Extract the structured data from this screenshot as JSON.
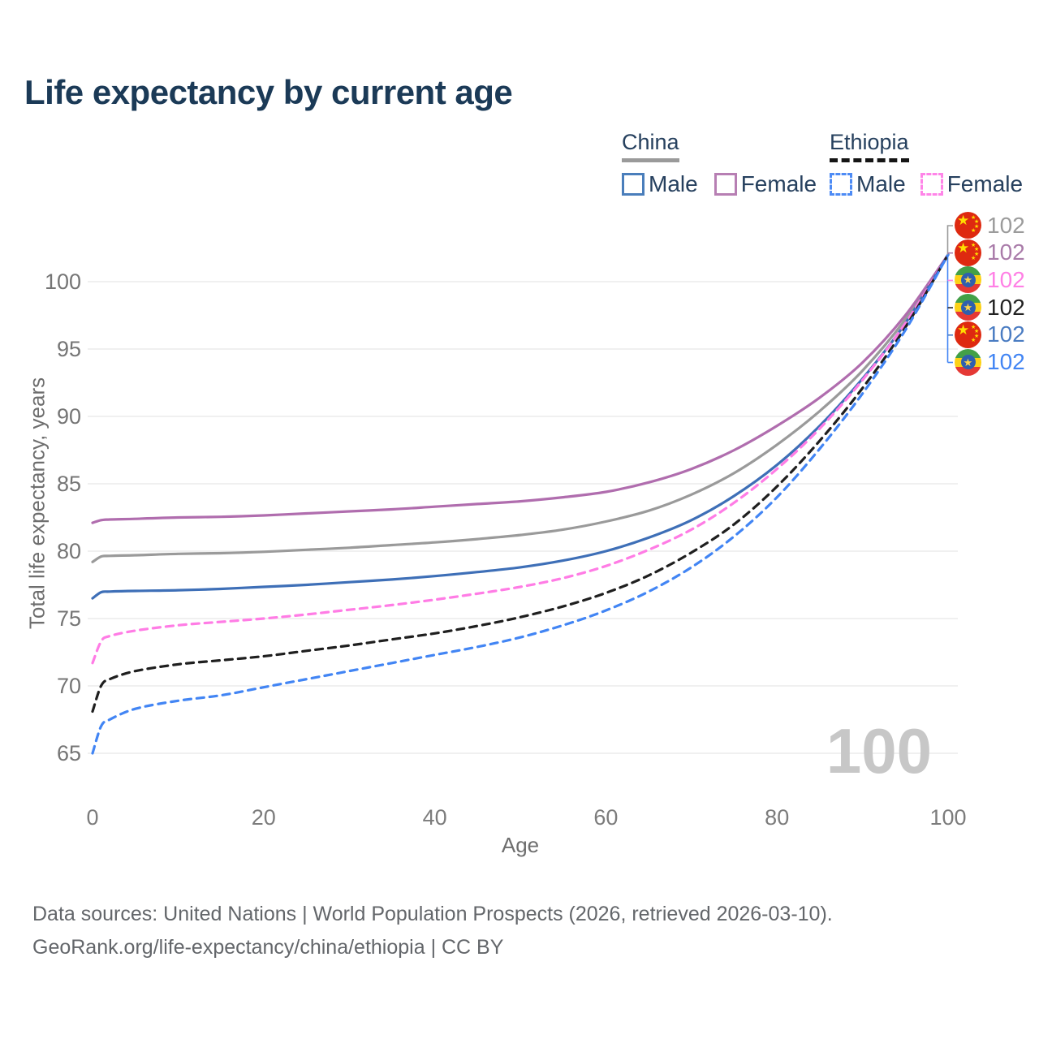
{
  "title": "Life expectancy by current age",
  "legend": {
    "groups": [
      {
        "name": "China",
        "line_style": "solid",
        "underline_color": "#9a9a9a",
        "items": [
          {
            "label": "Male",
            "color": "#4a7ebb"
          },
          {
            "label": "Female",
            "color": "#b77fb3"
          }
        ]
      },
      {
        "name": "Ethiopia",
        "line_style": "dashed",
        "underline_color": "#151515",
        "items": [
          {
            "label": "Male",
            "color": "#4d8bf5"
          },
          {
            "label": "Female",
            "color": "#ff85e8"
          }
        ]
      }
    ]
  },
  "chart_data": {
    "type": "line",
    "title": "Life expectancy by current age",
    "xlabel": "Age",
    "ylabel": "Total life expectancy, years",
    "xlim": [
      0,
      100
    ],
    "ylim": [
      65,
      102
    ],
    "xticks": [
      0,
      20,
      40,
      60,
      80,
      100
    ],
    "yticks": [
      65,
      70,
      75,
      80,
      85,
      90,
      95,
      100
    ],
    "grid": "horizontal-only",
    "legend_position": "top-right",
    "watermark": "100",
    "x": [
      0,
      1,
      2,
      5,
      10,
      15,
      20,
      25,
      30,
      35,
      40,
      45,
      50,
      55,
      60,
      65,
      70,
      75,
      80,
      85,
      90,
      95,
      100
    ],
    "series": [
      {
        "name": "China",
        "color": "#9a9a9a",
        "dash": false,
        "values": [
          79.2,
          79.6,
          79.65,
          79.7,
          79.8,
          79.85,
          79.95,
          80.1,
          80.25,
          80.45,
          80.65,
          80.9,
          81.2,
          81.6,
          82.2,
          83.0,
          84.2,
          85.8,
          87.9,
          90.4,
          93.4,
          97.2,
          102
        ]
      },
      {
        "name": "China Female",
        "color": "#b06dae",
        "dash": false,
        "values": [
          82.1,
          82.3,
          82.35,
          82.4,
          82.5,
          82.55,
          82.65,
          82.8,
          82.95,
          83.1,
          83.3,
          83.5,
          83.7,
          84.0,
          84.4,
          85.1,
          86.1,
          87.5,
          89.3,
          91.4,
          94.0,
          97.5,
          102
        ]
      },
      {
        "name": "China Male",
        "color": "#3e6fb7",
        "dash": false,
        "values": [
          76.5,
          76.95,
          77.0,
          77.05,
          77.1,
          77.2,
          77.35,
          77.5,
          77.7,
          77.9,
          78.15,
          78.45,
          78.8,
          79.3,
          80.0,
          81.0,
          82.3,
          84.1,
          86.4,
          89.3,
          92.8,
          96.9,
          102
        ]
      },
      {
        "name": "Ethiopia Female",
        "color": "#ff7ce5",
        "dash": true,
        "values": [
          71.7,
          73.3,
          73.7,
          74.1,
          74.5,
          74.75,
          75.0,
          75.3,
          75.65,
          76.0,
          76.4,
          76.85,
          77.35,
          78.0,
          78.9,
          80.1,
          81.6,
          83.6,
          86.1,
          89.1,
          92.7,
          96.9,
          102
        ]
      },
      {
        "name": "Ethiopia",
        "color": "#1f1f1f",
        "dash": true,
        "values": [
          68.1,
          70.0,
          70.5,
          71.1,
          71.6,
          71.9,
          72.2,
          72.6,
          73.0,
          73.45,
          73.9,
          74.45,
          75.1,
          75.9,
          76.9,
          78.2,
          79.9,
          82.0,
          84.8,
          88.2,
          92.1,
          96.6,
          102
        ]
      },
      {
        "name": "Ethiopia Male",
        "color": "#4285f4",
        "dash": true,
        "values": [
          65.0,
          67.0,
          67.5,
          68.3,
          68.9,
          69.3,
          69.9,
          70.5,
          71.1,
          71.7,
          72.3,
          72.9,
          73.6,
          74.5,
          75.6,
          77.0,
          78.8,
          81.1,
          84.0,
          87.6,
          91.7,
          96.4,
          102
        ]
      }
    ],
    "end_labels": [
      {
        "flag": "china",
        "text": "102",
        "color": "#9b9b9b",
        "series": "China"
      },
      {
        "flag": "china",
        "text": "102",
        "color": "#a97ba9",
        "series": "China Female"
      },
      {
        "flag": "ethiopia",
        "text": "102",
        "color": "#ff80e5",
        "series": "Ethiopia Female"
      },
      {
        "flag": "ethiopia",
        "text": "102",
        "color": "#222222",
        "series": "Ethiopia"
      },
      {
        "flag": "china",
        "text": "102",
        "color": "#4a7cc2",
        "series": "China Male"
      },
      {
        "flag": "ethiopia",
        "text": "102",
        "color": "#4285f4",
        "series": "Ethiopia Male"
      }
    ]
  },
  "footer": {
    "line1": "Data sources: United Nations | World Population Prospects (2026, retrieved 2026-03-10).",
    "line2": "GeoRank.org/life-expectancy/china/ethiopia | CC BY"
  }
}
